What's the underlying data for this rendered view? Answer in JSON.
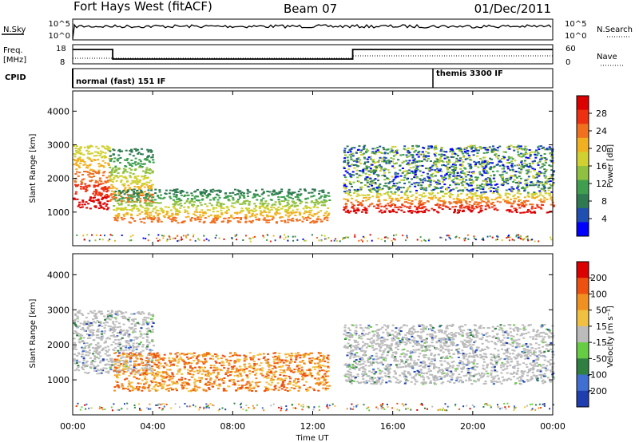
{
  "header": {
    "station": "Fort Hays West (fitACF)",
    "beam": "Beam 07",
    "date": "01/Dec/2011"
  },
  "strips": {
    "nsky_label": "N.Sky",
    "nsky_ticks": [
      "10^5",
      "10^0"
    ],
    "nsky_right_ticks": [
      "10^5",
      "10^0"
    ],
    "nsearch_label": "N.Search",
    "freq_label": "Freq.",
    "freq_unit": "[MHz]",
    "freq_ticks": [
      "18",
      "8"
    ],
    "nave_ticks": [
      "60",
      "0"
    ],
    "nave_label": "Nave",
    "cpid_label": "CPID",
    "cpid_segments": [
      {
        "start_hour": 0,
        "end_hour": 18,
        "label": "normal (fast) 151 IF"
      },
      {
        "start_hour": 18,
        "end_hour": 24,
        "label": "themis 3300 IF"
      }
    ],
    "freq_series": [
      {
        "start_hour": 0,
        "end_hour": 2,
        "mhz": 15.5
      },
      {
        "start_hour": 2,
        "end_hour": 14,
        "mhz": 10.5
      },
      {
        "start_hour": 14,
        "end_hour": 24,
        "mhz": 15.5
      }
    ]
  },
  "chart_data": [
    {
      "type": "heatmap",
      "panel": "power",
      "ylabel": "Slant Range [km]",
      "ylim": [
        0,
        4600
      ],
      "yticks": [
        "4000",
        "3000",
        "2000",
        "1000"
      ],
      "xlim": [
        0,
        24
      ],
      "xticks": [
        "00:00",
        "04:00",
        "08:00",
        "12:00",
        "16:00",
        "20:00",
        "00:00"
      ],
      "colorbar": {
        "label": "Power [dB]",
        "ticks": [
          "28",
          "24",
          "20",
          "16",
          "12",
          "8",
          "4"
        ],
        "colors": [
          "#0000ff",
          "#1f4fb0",
          "#2f7a50",
          "#3f9f4f",
          "#8fc040",
          "#d0d030",
          "#f0b020",
          "#f07020",
          "#ee3010",
          "#dd0000"
        ]
      },
      "regions": [
        {
          "start_hour": 0.0,
          "end_hour": 1.8,
          "range_low_km": 1100,
          "range_high_km": 3000,
          "level": "strong"
        },
        {
          "start_hour": 1.8,
          "end_hour": 4.0,
          "range_low_km": 1300,
          "range_high_km": 2900,
          "level": "medium"
        },
        {
          "start_hour": 2.0,
          "end_hour": 12.8,
          "range_low_km": 700,
          "range_high_km": 1700,
          "level": "medium"
        },
        {
          "start_hour": 13.5,
          "end_hour": 24.0,
          "range_low_km": 1000,
          "range_high_km": 1600,
          "level": "strong"
        },
        {
          "start_hour": 13.5,
          "end_hour": 24.0,
          "range_low_km": 1600,
          "range_high_km": 3000,
          "level": "weak"
        }
      ]
    },
    {
      "type": "heatmap",
      "panel": "velocity",
      "ylabel": "Slant Range [km]",
      "ylim": [
        0,
        4600
      ],
      "yticks": [
        "4000",
        "3000",
        "2000",
        "1000"
      ],
      "xlim": [
        0,
        24
      ],
      "xticks": [
        "00:00",
        "04:00",
        "08:00",
        "12:00",
        "16:00",
        "20:00",
        "00:00"
      ],
      "xlabel": "Time UT",
      "colorbar": {
        "label": "Velocity [m s⁻¹]",
        "ticks": [
          "200",
          "100",
          "50",
          "15",
          "-15",
          "-50",
          "-100",
          "-200"
        ],
        "colors": [
          "#1f3fb0",
          "#3f6fd0",
          "#2f8040",
          "#66cc44",
          "#bbbbbb",
          "#f2c040",
          "#f09020",
          "#ee5010",
          "#dd0000"
        ]
      },
      "regions": [
        {
          "start_hour": 0.0,
          "end_hour": 4.0,
          "range_low_km": 1200,
          "range_high_km": 3000,
          "level": "ground"
        },
        {
          "start_hour": 2.0,
          "end_hour": 12.8,
          "range_low_km": 700,
          "range_high_km": 1800,
          "level": "negative"
        },
        {
          "start_hour": 13.5,
          "end_hour": 24.0,
          "range_low_km": 900,
          "range_high_km": 2600,
          "level": "ground"
        }
      ]
    }
  ]
}
